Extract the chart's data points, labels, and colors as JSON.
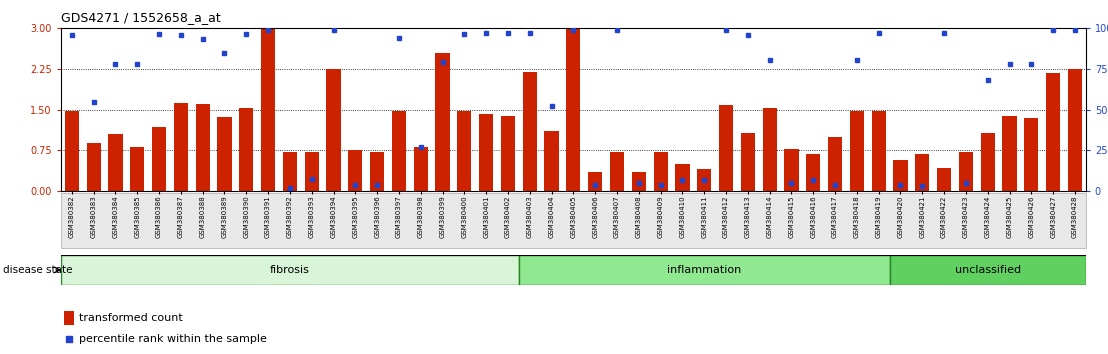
{
  "title": "GDS4271 / 1552658_a_at",
  "samples": [
    "GSM380382",
    "GSM380383",
    "GSM380384",
    "GSM380385",
    "GSM380386",
    "GSM380387",
    "GSM380388",
    "GSM380389",
    "GSM380390",
    "GSM380391",
    "GSM380392",
    "GSM380393",
    "GSM380394",
    "GSM380395",
    "GSM380396",
    "GSM380397",
    "GSM380398",
    "GSM380399",
    "GSM380400",
    "GSM380401",
    "GSM380402",
    "GSM380403",
    "GSM380404",
    "GSM380405",
    "GSM380406",
    "GSM380407",
    "GSM380408",
    "GSM380409",
    "GSM380410",
    "GSM380411",
    "GSM380412",
    "GSM380413",
    "GSM380414",
    "GSM380415",
    "GSM380416",
    "GSM380417",
    "GSM380418",
    "GSM380419",
    "GSM380420",
    "GSM380421",
    "GSM380422",
    "GSM380423",
    "GSM380424",
    "GSM380425",
    "GSM380426",
    "GSM380427",
    "GSM380428"
  ],
  "red_bars": [
    1.47,
    0.88,
    1.05,
    0.82,
    1.18,
    1.63,
    1.6,
    1.37,
    1.53,
    3.0,
    0.72,
    0.72,
    2.25,
    0.75,
    0.72,
    1.47,
    0.82,
    2.55,
    1.47,
    1.42,
    1.38,
    2.2,
    1.1,
    3.0,
    0.35,
    0.72,
    0.35,
    0.72,
    0.5,
    0.4,
    1.58,
    1.07,
    1.53,
    0.78,
    0.68,
    1.0,
    1.48,
    1.47,
    0.57,
    0.68,
    0.42,
    0.72,
    1.08,
    1.38,
    1.35,
    2.18,
    2.25
  ],
  "blue_dots": [
    2.88,
    1.65,
    2.35,
    2.35,
    2.9,
    2.88,
    2.8,
    2.55,
    2.9,
    2.97,
    0.05,
    0.22,
    2.97,
    0.12,
    0.12,
    2.82,
    0.82,
    2.38,
    2.9,
    2.92,
    2.92,
    2.92,
    1.57,
    2.97,
    0.12,
    2.97,
    0.15,
    0.12,
    0.2,
    0.2,
    2.97,
    2.88,
    2.42,
    0.15,
    0.2,
    0.12,
    2.42,
    2.92,
    0.12,
    0.1,
    2.92,
    0.15,
    2.05,
    2.35,
    2.35,
    2.97,
    2.97
  ],
  "group_boundaries": [
    0,
    21,
    38,
    47
  ],
  "group_labels": [
    "fibrosis",
    "inflammation",
    "unclassified"
  ],
  "ylim_left": [
    0,
    3.0
  ],
  "ylim_right": [
    0,
    100
  ],
  "yticks_left": [
    0,
    0.75,
    1.5,
    2.25,
    3.0
  ],
  "yticks_right": [
    0,
    25,
    50,
    75,
    100
  ],
  "hlines": [
    0.75,
    1.5,
    2.25
  ],
  "bar_color": "#cc2200",
  "dot_color": "#2244cc",
  "title_fontsize": 10,
  "legend_label_bar": "transformed count",
  "legend_label_dot": "percentile rank within the sample",
  "disease_state_label": "disease state",
  "group_facecolors": [
    "#d8f5d8",
    "#90e890",
    "#60d060"
  ],
  "group_edgecolor": "#228822"
}
